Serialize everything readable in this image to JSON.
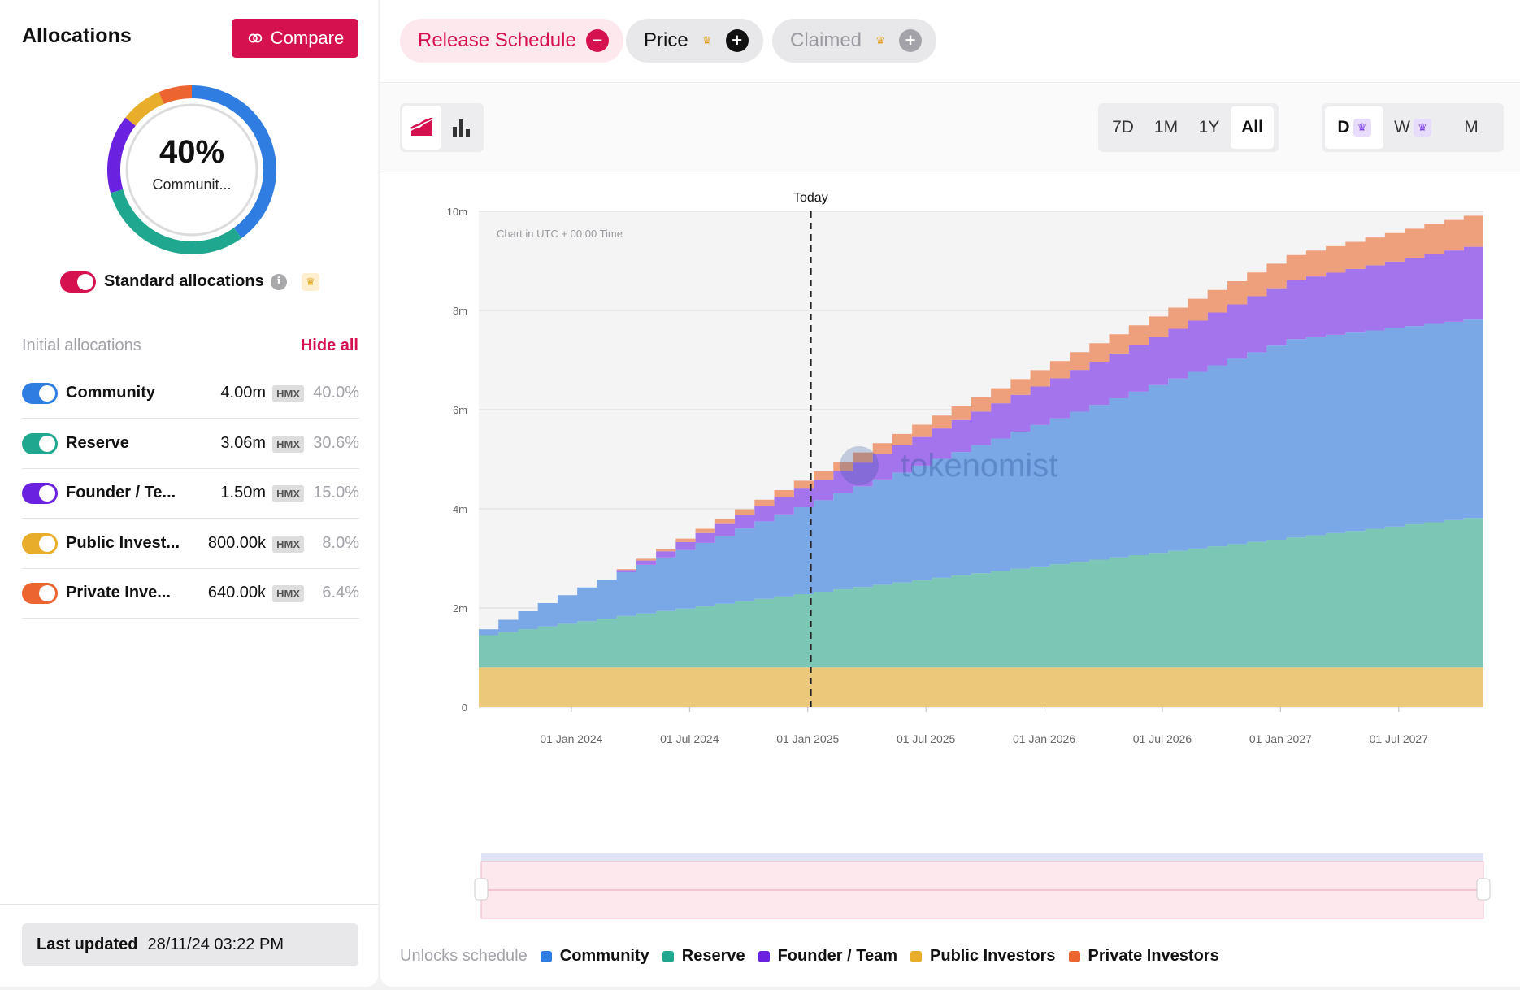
{
  "sidebar": {
    "title": "Allocations",
    "compare_label": "Compare",
    "donut": {
      "percent": "40%",
      "label": "Communit..."
    },
    "standard_label": "Standard allocations",
    "info_glyph": "i",
    "section_title": "Initial allocations",
    "hide_all": "Hide all",
    "items": [
      {
        "name": "Community",
        "value": "4.00m",
        "token": "HMX",
        "pct": "40.0%",
        "color": "#2f7de0",
        "share": 0.4
      },
      {
        "name": "Reserve",
        "value": "3.06m",
        "token": "HMX",
        "pct": "30.6%",
        "color": "#1fa88f",
        "share": 0.306
      },
      {
        "name": "Founder / Te...",
        "value": "1.50m",
        "token": "HMX",
        "pct": "15.0%",
        "color": "#6a22e0",
        "share": 0.15
      },
      {
        "name": "Public Invest...",
        "value": "800.00k",
        "token": "HMX",
        "pct": "8.0%",
        "color": "#e8ae2b",
        "share": 0.08
      },
      {
        "name": "Private Inve...",
        "value": "640.00k",
        "token": "HMX",
        "pct": "6.4%",
        "color": "#ec6430",
        "share": 0.064
      }
    ],
    "last_updated_label": "Last updated",
    "last_updated_value": "28/11/24 03:22 PM"
  },
  "tabs": [
    {
      "label": "Release Schedule",
      "icon": "minus-icon",
      "glyph": "−"
    },
    {
      "label": "Price",
      "icon": "plus-icon",
      "glyph": "+"
    },
    {
      "label": "Claimed",
      "icon": "plus-icon",
      "glyph": "+"
    }
  ],
  "toolbar": {
    "ranges": [
      "7D",
      "1M",
      "1Y",
      "All"
    ],
    "active_range": "All",
    "intervals": [
      "D",
      "W",
      "M"
    ]
  },
  "watermark": "tokenomist",
  "legend": {
    "title": "Unlocks schedule",
    "items": [
      "Community",
      "Reserve",
      "Founder / Team",
      "Public Investors",
      "Private Investors"
    ]
  },
  "chart_data": {
    "type": "area",
    "stacked": true,
    "note": "Chart in UTC + 00:00 Time",
    "today_label": "Today",
    "today_index": 16,
    "y_ticks": [
      "0",
      "2m",
      "4m",
      "6m",
      "8m",
      "10m"
    ],
    "ylim": [
      0,
      10000000
    ],
    "x_ticks": [
      "01 Jan 2024",
      "01 Jul 2024",
      "01 Jan 2025",
      "01 Jul 2025",
      "01 Jan 2026",
      "01 Jul 2026",
      "01 Jan 2027",
      "01 Jul 2027"
    ],
    "x_tick_index": [
      5,
      11,
      17,
      23,
      29,
      35,
      41,
      47
    ],
    "period_count": 51,
    "series": [
      {
        "name": "Public Investors",
        "color": "#ecc87a",
        "start": 800000,
        "end": 800000,
        "start_idx": 0,
        "end_idx": 51
      },
      {
        "name": "Reserve",
        "color": "#7cc6b5",
        "start": 650000,
        "end": 3060000,
        "start_idx": 0,
        "end_idx": 51
      },
      {
        "name": "Community",
        "color": "#7aa7e6",
        "start": 120000,
        "end": 4000000,
        "start_idx": 0,
        "end_idx": 41
      },
      {
        "name": "Founder / Team",
        "color": "#a474ec",
        "start": 0,
        "end": 1500000,
        "start_idx": 6,
        "end_idx": 51
      },
      {
        "name": "Private Investors",
        "color": "#eea07c",
        "start": 0,
        "end": 640000,
        "start_idx": 6,
        "end_idx": 51
      }
    ]
  }
}
